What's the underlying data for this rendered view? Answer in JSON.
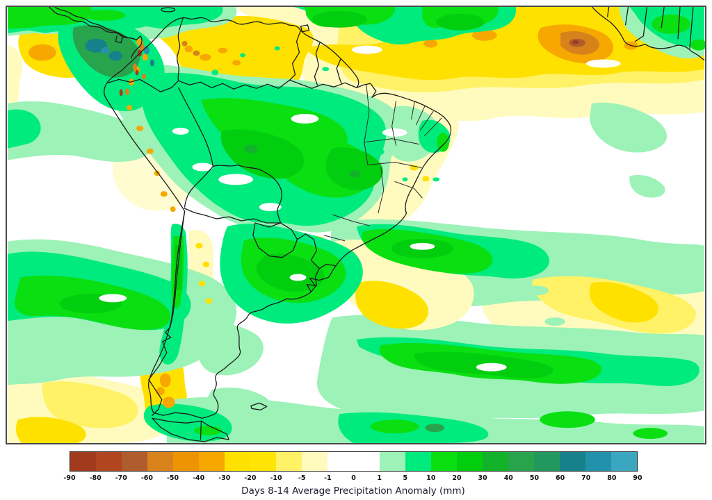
{
  "title": "Days 8-14 Average Precipitation Anomaly (mm)",
  "colorbar": {
    "orientation": "horizontal",
    "border_color": "#1a1a1a",
    "tick_labels": [
      "-90",
      "-80",
      "-70",
      "-60",
      "-50",
      "-40",
      "-30",
      "-20",
      "-10",
      "-5",
      "-1",
      "0",
      "1",
      "5",
      "10",
      "20",
      "30",
      "40",
      "50",
      "60",
      "70",
      "80",
      "90"
    ],
    "segment_colors": [
      "#a23b1e",
      "#b0451f",
      "#b05d2d",
      "#d8821b",
      "#ee9303",
      "#f6a800",
      "#ffe100",
      "#ffe404",
      "#fff266",
      "#fffbbe",
      "#ffffff",
      "#ffffff",
      "#9cf2b7",
      "#00eb7e",
      "#0adf12",
      "#00ce0e",
      "#12b32a",
      "#28a44c",
      "#21985d",
      "#16808b",
      "#2292ac",
      "#3ba6c0"
    ]
  },
  "map": {
    "region": "South America and adjacent Pacific and Atlantic oceans",
    "background_color": "#ffffff",
    "frame_color": "#4a4a4a",
    "border_line_color": "#1b1b1b"
  },
  "chart_data": {
    "type": "filled-contour-map",
    "title": "Days 8-14 Average Precipitation Anomaly (mm)",
    "units": "mm",
    "region": "South America",
    "contour_levels": [
      -90,
      -80,
      -70,
      -60,
      -50,
      -40,
      -30,
      -20,
      -10,
      -5,
      -1,
      0,
      1,
      5,
      10,
      20,
      30,
      40,
      50,
      60,
      70,
      80,
      90
    ],
    "palette": [
      "#a23b1e",
      "#b0451f",
      "#b05d2d",
      "#d8821b",
      "#ee9303",
      "#f6a800",
      "#ffe100",
      "#ffe404",
      "#fff266",
      "#fffbbe",
      "#ffffff",
      "#ffffff",
      "#9cf2b7",
      "#00eb7e",
      "#0adf12",
      "#00ce0e",
      "#12b32a",
      "#28a44c",
      "#21985d",
      "#16808b",
      "#2292ac",
      "#3ba6c0"
    ],
    "legend_position": "bottom",
    "notable_features": [
      "strong dry anomaly core (-60 to -80 mm) over the tropical North Atlantic",
      "dry anomaly band (-10 to -40 mm) stretching across the northern tropical Atlantic and Venezuela/Guianas",
      "wet anomaly (40-70 mm) over the eastern Pacific off Panama and Colombia",
      "broad wet anomaly (5-30 mm) over the western Amazon basin",
      "wet anomaly maximum (10-30 mm) over Paraguay, southern Brazil and Uruguay",
      "narrow wet strip along the Andes in central Chile",
      "dry anomaly (-20 to -50 mm) over southern Chile (Patagonia)",
      "pale dry wash over northeast Brazil and the far southeast Pacific",
      "alternating wet bands (5-30 mm) across the South Atlantic storm track",
      "dry patch (-10 to -20 mm) in the subtropical South Atlantic"
    ]
  }
}
